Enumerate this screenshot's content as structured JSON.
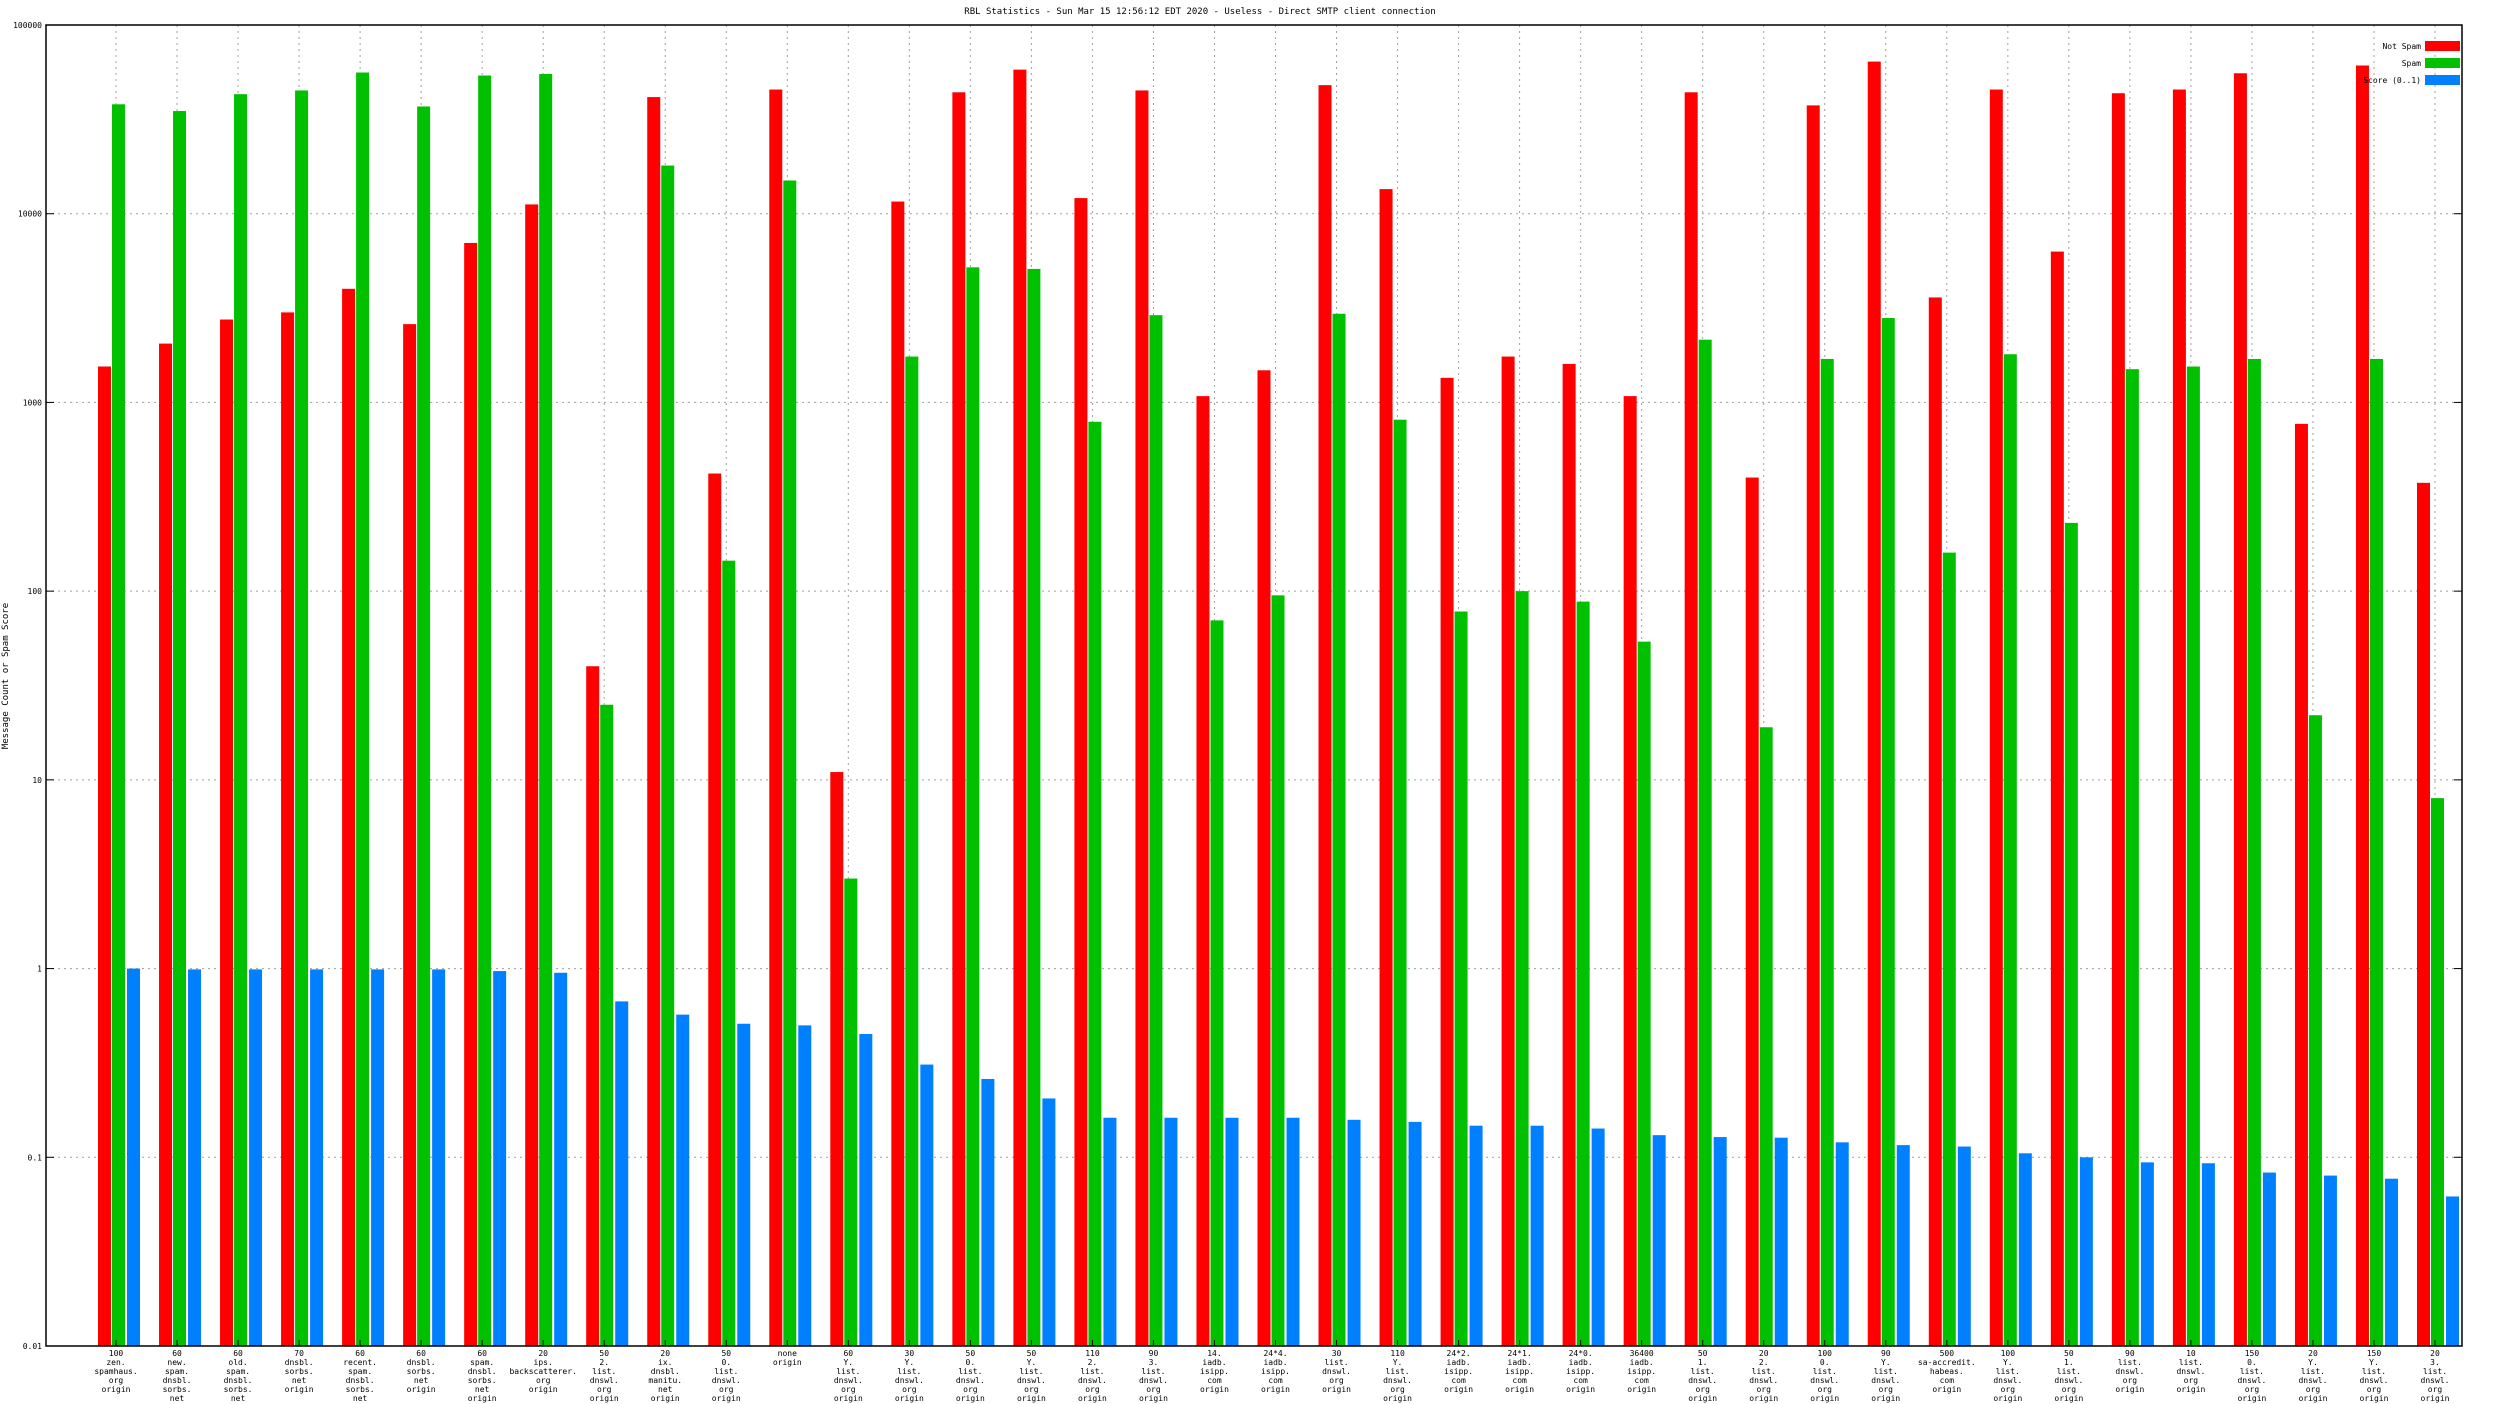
{
  "chart_data": {
    "type": "bar",
    "title": "RBL Statistics - Sun Mar 15 12:56:12 EDT 2020 - Useless - Direct SMTP client connection",
    "xlabel": "",
    "ylabel": "Message Count or Spam Score",
    "yscale": "log",
    "ylim": [
      0.01,
      100000
    ],
    "yticks": [
      "0.01",
      "0.1",
      "1",
      "10",
      "100",
      "1000",
      "10000",
      "100000"
    ],
    "grid": true,
    "legend_position": "top-right",
    "categories": [
      [
        "100",
        "zen.",
        "spamhaus.",
        "org",
        "origin"
      ],
      [
        "60",
        "new.",
        "spam.",
        "dnsbl.",
        "sorbs.",
        "net",
        "origin"
      ],
      [
        "60",
        "old.",
        "spam.",
        "dnsbl.",
        "sorbs.",
        "net",
        "origin"
      ],
      [
        "70",
        "dnsbl.",
        "sorbs.",
        "net",
        "origin"
      ],
      [
        "60",
        "recent.",
        "spam.",
        "dnsbl.",
        "sorbs.",
        "net",
        "origin"
      ],
      [
        "60",
        "dnsbl.",
        "sorbs.",
        "net",
        "origin"
      ],
      [
        "60",
        "spam.",
        "dnsbl.",
        "sorbs.",
        "net",
        "origin"
      ],
      [
        "20",
        "ips.",
        "backscatterer.",
        "org",
        "origin"
      ],
      [
        "50",
        "2.",
        "list.",
        "dnswl.",
        "org",
        "origin"
      ],
      [
        "20",
        "ix.",
        "dnsbl.",
        "manitu.",
        "net",
        "origin"
      ],
      [
        "50",
        "0.",
        "list.",
        "dnswl.",
        "org",
        "origin"
      ],
      [
        "none",
        "origin"
      ],
      [
        "60",
        "Y.",
        "list.",
        "dnswl.",
        "org",
        "origin"
      ],
      [
        "30",
        "Y.",
        "list.",
        "dnswl.",
        "org",
        "origin"
      ],
      [
        "50",
        "0.",
        "list.",
        "dnswl.",
        "org",
        "origin"
      ],
      [
        "50",
        "Y.",
        "list.",
        "dnswl.",
        "org",
        "origin"
      ],
      [
        "110",
        "2.",
        "list.",
        "dnswl.",
        "org",
        "origin"
      ],
      [
        "90",
        "3.",
        "list.",
        "dnswl.",
        "org",
        "origin"
      ],
      [
        "14.",
        "iadb.",
        "isipp.",
        "com",
        "origin"
      ],
      [
        "24*4.",
        "iadb.",
        "isipp.",
        "com",
        "origin"
      ],
      [
        "30",
        "list.",
        "dnswl.",
        "org",
        "origin"
      ],
      [
        "110",
        "Y.",
        "list.",
        "dnswl.",
        "org",
        "origin"
      ],
      [
        "24*2.",
        "iadb.",
        "isipp.",
        "com",
        "origin"
      ],
      [
        "24*1.",
        "iadb.",
        "isipp.",
        "com",
        "origin"
      ],
      [
        "24*0.",
        "iadb.",
        "isipp.",
        "com",
        "origin"
      ],
      [
        "36400",
        "iadb.",
        "isipp.",
        "com",
        "origin"
      ],
      [
        "50",
        "1.",
        "list.",
        "dnswl.",
        "org",
        "origin"
      ],
      [
        "20",
        "2.",
        "list.",
        "dnswl.",
        "org",
        "origin"
      ],
      [
        "100",
        "0.",
        "list.",
        "dnswl.",
        "org",
        "origin"
      ],
      [
        "90",
        "Y.",
        "list.",
        "dnswl.",
        "org",
        "origin"
      ],
      [
        "500",
        "sa-accredit.",
        "habeas.",
        "com",
        "origin"
      ],
      [
        "100",
        "Y.",
        "list.",
        "dnswl.",
        "org",
        "origin"
      ],
      [
        "50",
        "1.",
        "list.",
        "dnswl.",
        "org",
        "origin"
      ],
      [
        "90",
        "list.",
        "dnswl.",
        "org",
        "origin"
      ],
      [
        "10",
        "list.",
        "dnswl.",
        "org",
        "origin"
      ],
      [
        "150",
        "0.",
        "list.",
        "dnswl.",
        "org",
        "origin"
      ],
      [
        "20",
        "Y.",
        "list.",
        "dnswl.",
        "org",
        "origin"
      ],
      [
        "150",
        "Y.",
        "list.",
        "dnswl.",
        "org",
        "origin"
      ],
      [
        "20",
        "3.",
        "list.",
        "dnswl.",
        "org",
        "origin"
      ]
    ],
    "series": [
      {
        "name": "Not Spam",
        "color": "#ff0000",
        "values": [
          1550,
          2050,
          2750,
          3000,
          4000,
          2600,
          7000,
          11200,
          40,
          41500,
          420,
          45500,
          11,
          11600,
          44000,
          58000,
          12100,
          45000,
          1080,
          1480,
          48000,
          13500,
          1350,
          1750,
          1600,
          1080,
          44000,
          400,
          37500,
          64000,
          3600,
          45500,
          6300,
          43500,
          45500,
          55500,
          770,
          61000,
          375
        ]
      },
      {
        "name": "Spam",
        "color": "#00c000",
        "values": [
          38000,
          35000,
          43000,
          45000,
          56000,
          37000,
          54000,
          55000,
          25,
          18000,
          145,
          15000,
          3,
          1750,
          5200,
          5100,
          790,
          2900,
          70,
          95,
          2950,
          810,
          78,
          100,
          88,
          54,
          2150,
          19,
          1700,
          2800,
          160,
          1800,
          230,
          1500,
          1550,
          1700,
          22,
          1700,
          8
        ]
      },
      {
        "name": "Score (0..1)",
        "color": "#0080ff",
        "values": [
          1.0,
          0.99,
          0.99,
          0.99,
          0.99,
          0.99,
          0.97,
          0.95,
          0.67,
          0.57,
          0.51,
          0.5,
          0.45,
          0.31,
          0.26,
          0.205,
          0.162,
          0.162,
          0.162,
          0.162,
          0.158,
          0.154,
          0.147,
          0.147,
          0.142,
          0.131,
          0.128,
          0.127,
          0.12,
          0.116,
          0.114,
          0.105,
          0.1,
          0.094,
          0.093,
          0.083,
          0.08,
          0.077,
          0.062
        ]
      }
    ]
  }
}
